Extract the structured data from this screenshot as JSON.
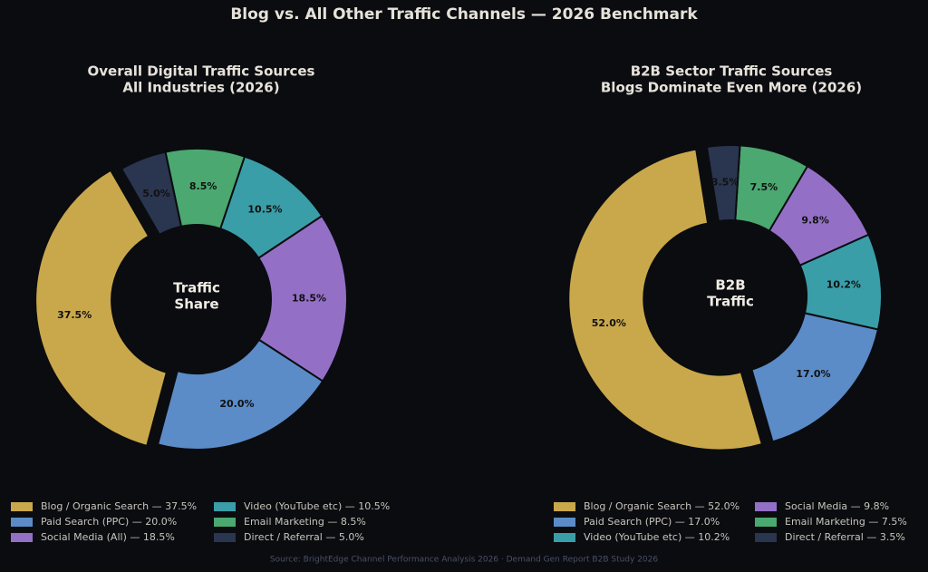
{
  "title": "Blog vs. All Other Traffic Channels — 2026 Benchmark",
  "source": "Source: BrightEdge Channel Performance Analysis 2026 · Demand Gen Report B2B Study 2026",
  "chart_data": [
    {
      "type": "pie",
      "title": [
        "Overall Digital Traffic Sources",
        "All Industries (2026)"
      ],
      "center_label": [
        "Traffic",
        "Share"
      ],
      "categories": [
        "Blog / Organic Search — 37.5%",
        "Paid Search (PPC) — 20.0%",
        "Social Media (All) — 18.5%",
        "Video (YouTube etc) — 10.5%",
        "Email Marketing — 8.5%",
        "Direct / Referral — 5.0%"
      ],
      "values": [
        37.5,
        20.0,
        18.5,
        10.5,
        8.5,
        5.0
      ],
      "value_labels": [
        "37.5%",
        "20.0%",
        "18.5%",
        "10.5%",
        "8.5%",
        "5.0%"
      ],
      "colors": [
        "#c9a84c",
        "#5b8cc8",
        "#9370c6",
        "#3a9ea8",
        "#4aa870",
        "#2a3550"
      ]
    },
    {
      "type": "pie",
      "title": [
        "B2B Sector Traffic Sources",
        "Blogs Dominate Even More (2026)"
      ],
      "center_label": [
        "B2B",
        "Traffic"
      ],
      "categories": [
        "Blog / Organic Search — 52.0%",
        "Paid Search (PPC) — 17.0%",
        "Video (YouTube etc) — 10.2%",
        "Social Media — 9.8%",
        "Email Marketing — 7.5%",
        "Direct / Referral — 3.5%"
      ],
      "values": [
        52.0,
        17.0,
        10.2,
        9.8,
        7.5,
        3.5
      ],
      "value_labels": [
        "52.0%",
        "17.0%",
        "10.2%",
        "9.8%",
        "7.5%",
        "3.5%"
      ],
      "colors": [
        "#c9a84c",
        "#5b8cc8",
        "#3a9ea8",
        "#9370c6",
        "#4aa870",
        "#2a3550"
      ]
    }
  ]
}
